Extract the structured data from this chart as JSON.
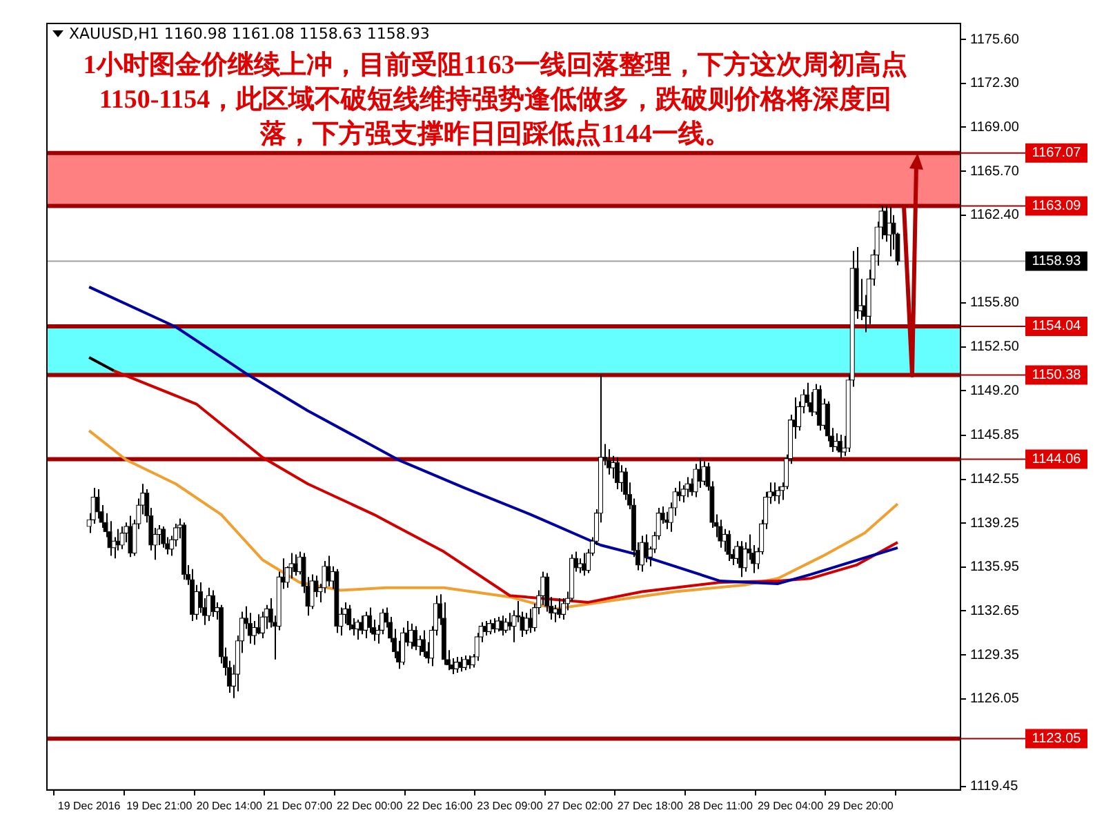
{
  "chart_data": {
    "type": "candlestick",
    "title": "1小时图金价继续上冲，目前受阻1163一线回落整理，下方这次周初高点1150-1154，此区域不破短线维持强势逢低做多，跌破则价格将深度回落，下方强支撑昨日回踩低点1144一线。",
    "annotations": [
      "XAUUSD,H1 1160.98 1161.08 1158.63 1158.93"
    ],
    "categories": [
      "19 Dec 2016",
      null,
      null,
      null,
      null,
      null,
      null,
      null,
      null,
      null,
      null,
      null,
      null,
      null,
      null,
      null,
      null,
      "19 Dec 21:00",
      null,
      null,
      null,
      null,
      null,
      null,
      null,
      null,
      null,
      null,
      null,
      null,
      null,
      null,
      null,
      null,
      "20 Dec 14:00",
      null,
      null,
      null,
      null,
      null,
      null,
      null,
      null,
      null,
      null,
      null,
      null,
      null,
      null,
      null,
      null,
      "21 Dec 07:00",
      null,
      null,
      null,
      null,
      null,
      null,
      null,
      null,
      null,
      null,
      null,
      null,
      null,
      null,
      null,
      null,
      "22 Dec 00:00",
      null,
      null,
      null,
      null,
      null,
      null,
      null,
      null,
      null,
      null,
      null,
      null,
      null,
      null,
      null,
      null,
      "22 Dec 16:00",
      null,
      null,
      null,
      null,
      null,
      null,
      null,
      null,
      null,
      null,
      null,
      null,
      null,
      null,
      null,
      null,
      "23 Dec 09:00",
      null,
      null,
      null,
      null,
      null,
      null,
      null,
      null,
      null,
      null,
      null,
      null,
      null,
      null,
      null,
      null,
      "27 Dec 02:00",
      null,
      null,
      null,
      null,
      null,
      null,
      null,
      null,
      null,
      null,
      null,
      null,
      null,
      null,
      null,
      null,
      "27 Dec 18:00",
      null,
      null,
      null,
      null,
      null,
      null,
      null,
      null,
      null,
      null,
      null,
      null,
      null,
      null,
      null,
      null,
      "28 Dec 11:00",
      null,
      null,
      null,
      null,
      null,
      null,
      null,
      null,
      null,
      null,
      null,
      null,
      null,
      null,
      null,
      null,
      "29 Dec 04:00",
      null,
      null,
      null,
      null,
      null,
      null,
      null,
      null,
      null,
      null,
      null,
      null,
      null,
      null,
      null,
      null,
      "29 Dec 20:00",
      null,
      null,
      null,
      null,
      null,
      null,
      null,
      null,
      null
    ],
    "ohlc": [
      [
        1139.0,
        1140.0,
        1138.5,
        1139.5
      ],
      [
        1139.5,
        1141.9,
        1139.2,
        1141.2
      ],
      [
        1141.2,
        1141.8,
        1139.6,
        1140.1
      ],
      [
        1140.1,
        1140.6,
        1138.9,
        1139.3
      ],
      [
        1139.3,
        1140.0,
        1138.2,
        1138.6
      ],
      [
        1138.6,
        1139.4,
        1136.8,
        1137.4
      ],
      [
        1137.4,
        1138.2,
        1136.6,
        1137.9
      ],
      [
        1137.9,
        1138.8,
        1137.2,
        1137.6
      ],
      [
        1137.6,
        1139.0,
        1137.3,
        1138.5
      ],
      [
        1138.5,
        1139.3,
        1137.8,
        1139.0
      ],
      [
        1139.0,
        1139.8,
        1136.7,
        1137.0
      ],
      [
        1137.0,
        1139.5,
        1136.8,
        1139.2
      ],
      [
        1139.2,
        1141.1,
        1138.8,
        1140.6
      ],
      [
        1140.6,
        1142.2,
        1139.9,
        1141.5
      ],
      [
        1141.5,
        1141.8,
        1139.3,
        1139.8
      ],
      [
        1139.8,
        1140.4,
        1137.2,
        1137.6
      ],
      [
        1137.6,
        1138.9,
        1136.5,
        1138.4
      ],
      [
        1138.4,
        1139.1,
        1137.6,
        1138.8
      ],
      [
        1138.8,
        1139.0,
        1137.4,
        1137.7
      ],
      [
        1137.7,
        1138.2,
        1136.9,
        1137.3
      ],
      [
        1137.3,
        1138.3,
        1136.8,
        1138.0
      ],
      [
        1138.0,
        1139.2,
        1137.5,
        1138.9
      ],
      [
        1138.9,
        1139.6,
        1138.1,
        1139.1
      ],
      [
        1139.1,
        1139.3,
        1135.0,
        1135.4
      ],
      [
        1135.4,
        1136.1,
        1134.6,
        1135.0
      ],
      [
        1135.0,
        1135.8,
        1131.9,
        1132.4
      ],
      [
        1132.4,
        1134.6,
        1132.0,
        1134.1
      ],
      [
        1134.1,
        1134.8,
        1132.5,
        1132.9
      ],
      [
        1132.9,
        1133.6,
        1131.6,
        1132.3
      ],
      [
        1132.3,
        1134.4,
        1131.9,
        1133.8
      ],
      [
        1133.8,
        1134.2,
        1132.2,
        1132.6
      ],
      [
        1132.6,
        1133.3,
        1132.0,
        1132.9
      ],
      [
        1132.9,
        1133.1,
        1128.7,
        1129.2
      ],
      [
        1129.2,
        1129.9,
        1127.8,
        1128.4
      ],
      [
        1128.4,
        1128.9,
        1126.5,
        1127.0
      ],
      [
        1127.0,
        1128.6,
        1126.1,
        1127.9
      ],
      [
        1127.9,
        1130.8,
        1126.6,
        1130.4
      ],
      [
        1130.4,
        1132.6,
        1129.5,
        1132.1
      ],
      [
        1132.1,
        1133.0,
        1131.3,
        1131.7
      ],
      [
        1131.7,
        1132.5,
        1130.2,
        1130.8
      ],
      [
        1130.8,
        1131.9,
        1130.1,
        1131.4
      ],
      [
        1131.4,
        1132.4,
        1130.9,
        1131.0
      ],
      [
        1131.0,
        1132.6,
        1130.6,
        1132.2
      ],
      [
        1132.2,
        1133.1,
        1131.3,
        1132.8
      ],
      [
        1132.8,
        1133.6,
        1131.4,
        1131.8
      ],
      [
        1131.8,
        1132.3,
        1129.0,
        1131.5
      ],
      [
        1131.5,
        1135.6,
        1131.2,
        1135.2
      ],
      [
        1135.2,
        1136.6,
        1134.3,
        1134.8
      ],
      [
        1134.8,
        1136.0,
        1134.4,
        1135.9
      ],
      [
        1135.9,
        1137.0,
        1135.1,
        1136.2
      ],
      [
        1136.2,
        1136.9,
        1135.3,
        1135.6
      ],
      [
        1135.6,
        1137.1,
        1135.4,
        1136.7
      ],
      [
        1136.7,
        1137.0,
        1134.0,
        1134.5
      ],
      [
        1134.5,
        1135.2,
        1132.3,
        1133.0
      ],
      [
        1133.0,
        1135.4,
        1132.8,
        1134.9
      ],
      [
        1134.9,
        1135.3,
        1133.7,
        1134.1
      ],
      [
        1134.1,
        1134.7,
        1133.3,
        1134.4
      ],
      [
        1134.4,
        1136.4,
        1134.0,
        1136.0
      ],
      [
        1136.0,
        1136.8,
        1134.5,
        1134.9
      ],
      [
        1134.9,
        1136.0,
        1134.3,
        1135.6
      ],
      [
        1135.6,
        1135.8,
        1131.0,
        1131.5
      ],
      [
        1131.5,
        1132.9,
        1130.8,
        1132.4
      ],
      [
        1132.4,
        1133.3,
        1131.7,
        1132.8
      ],
      [
        1132.8,
        1133.1,
        1131.2,
        1131.6
      ],
      [
        1131.6,
        1132.1,
        1130.8,
        1131.3
      ],
      [
        1131.3,
        1132.0,
        1130.5,
        1131.8
      ],
      [
        1131.8,
        1132.3,
        1130.9,
        1131.2
      ],
      [
        1131.2,
        1132.6,
        1130.6,
        1132.3
      ],
      [
        1132.3,
        1132.9,
        1131.0,
        1131.4
      ],
      [
        1131.4,
        1132.0,
        1130.4,
        1130.9
      ],
      [
        1130.9,
        1131.6,
        1130.2,
        1131.2
      ],
      [
        1131.2,
        1132.8,
        1130.9,
        1132.5
      ],
      [
        1132.5,
        1132.9,
        1131.4,
        1131.8
      ],
      [
        1131.8,
        1132.2,
        1130.3,
        1130.6
      ],
      [
        1130.6,
        1131.3,
        1129.1,
        1129.6
      ],
      [
        1129.6,
        1130.4,
        1128.3,
        1128.8
      ],
      [
        1128.8,
        1131.4,
        1128.6,
        1131.0
      ],
      [
        1131.0,
        1131.9,
        1130.0,
        1130.3
      ],
      [
        1130.3,
        1131.7,
        1129.8,
        1131.2
      ],
      [
        1131.2,
        1131.5,
        1129.7,
        1130.0
      ],
      [
        1130.0,
        1130.8,
        1129.3,
        1130.5
      ],
      [
        1130.5,
        1131.2,
        1129.2,
        1129.6
      ],
      [
        1129.6,
        1130.3,
        1128.7,
        1129.1
      ],
      [
        1129.1,
        1131.5,
        1128.5,
        1131.2
      ],
      [
        1131.2,
        1133.8,
        1130.8,
        1133.2
      ],
      [
        1133.2,
        1133.9,
        1131.6,
        1132.1
      ],
      [
        1132.1,
        1133.3,
        1128.6,
        1129.0
      ],
      [
        1129.0,
        1129.7,
        1128.2,
        1128.6
      ],
      [
        1128.6,
        1129.1,
        1127.9,
        1128.3
      ],
      [
        1128.3,
        1129.2,
        1128.0,
        1128.8
      ],
      [
        1128.8,
        1129.2,
        1128.1,
        1128.4
      ],
      [
        1128.4,
        1129.3,
        1128.2,
        1129.0
      ],
      [
        1129.0,
        1129.3,
        1128.3,
        1128.6
      ],
      [
        1128.6,
        1129.4,
        1128.4,
        1129.2
      ],
      [
        1129.2,
        1131.0,
        1128.9,
        1130.7
      ],
      [
        1130.7,
        1131.8,
        1130.3,
        1131.5
      ],
      [
        1131.5,
        1131.9,
        1130.8,
        1131.1
      ],
      [
        1131.1,
        1132.0,
        1130.9,
        1131.7
      ],
      [
        1131.7,
        1132.1,
        1131.0,
        1131.3
      ],
      [
        1131.3,
        1132.2,
        1131.1,
        1131.9
      ],
      [
        1131.9,
        1132.3,
        1130.8,
        1131.2
      ],
      [
        1131.2,
        1132.1,
        1131.0,
        1131.8
      ],
      [
        1131.8,
        1132.5,
        1131.2,
        1131.5
      ],
      [
        1131.5,
        1132.7,
        1130.3,
        1132.3
      ],
      [
        1132.3,
        1133.4,
        1131.8,
        1132.2
      ],
      [
        1132.2,
        1132.6,
        1130.7,
        1131.2
      ],
      [
        1131.2,
        1132.5,
        1130.9,
        1132.1
      ],
      [
        1132.1,
        1132.8,
        1131.0,
        1131.4
      ],
      [
        1131.4,
        1133.2,
        1131.1,
        1132.9
      ],
      [
        1132.9,
        1134.2,
        1132.4,
        1133.8
      ],
      [
        1133.8,
        1135.6,
        1133.1,
        1135.2
      ],
      [
        1135.2,
        1135.5,
        1132.6,
        1133.0
      ],
      [
        1133.0,
        1133.7,
        1132.0,
        1132.5
      ],
      [
        1132.5,
        1133.1,
        1131.8,
        1132.8
      ],
      [
        1132.8,
        1133.6,
        1132.1,
        1132.4
      ],
      [
        1132.4,
        1133.6,
        1132.0,
        1133.2
      ],
      [
        1133.2,
        1134.1,
        1132.7,
        1133.6
      ],
      [
        1133.6,
        1136.9,
        1133.4,
        1136.6
      ],
      [
        1136.6,
        1137.1,
        1135.6,
        1135.9
      ],
      [
        1135.9,
        1136.6,
        1135.5,
        1136.2
      ],
      [
        1136.2,
        1137.0,
        1135.3,
        1135.7
      ],
      [
        1135.7,
        1137.3,
        1135.5,
        1137.0
      ],
      [
        1137.0,
        1138.2,
        1136.8,
        1137.9
      ],
      [
        1137.9,
        1140.3,
        1137.6,
        1140.0
      ],
      [
        1140.0,
        1150.4,
        1139.3,
        1144.2
      ],
      [
        1144.2,
        1145.2,
        1143.6,
        1144.0
      ],
      [
        1144.0,
        1144.8,
        1142.9,
        1143.4
      ],
      [
        1143.4,
        1144.3,
        1142.6,
        1143.8
      ],
      [
        1143.8,
        1144.2,
        1141.8,
        1142.3
      ],
      [
        1142.3,
        1143.6,
        1141.6,
        1143.1
      ],
      [
        1143.1,
        1143.4,
        1141.0,
        1141.4
      ],
      [
        1141.4,
        1142.3,
        1140.3,
        1140.6
      ],
      [
        1140.6,
        1141.1,
        1136.7,
        1137.2
      ],
      [
        1137.2,
        1137.8,
        1135.7,
        1136.1
      ],
      [
        1136.1,
        1138.3,
        1135.6,
        1137.8
      ],
      [
        1137.8,
        1138.4,
        1136.3,
        1136.7
      ],
      [
        1136.7,
        1137.5,
        1136.0,
        1137.3
      ],
      [
        1137.3,
        1138.6,
        1137.0,
        1138.3
      ],
      [
        1138.3,
        1140.4,
        1138.0,
        1140.0
      ],
      [
        1140.0,
        1140.5,
        1139.2,
        1139.5
      ],
      [
        1139.5,
        1140.1,
        1138.8,
        1139.3
      ],
      [
        1139.3,
        1140.8,
        1138.6,
        1140.4
      ],
      [
        1140.4,
        1141.9,
        1139.8,
        1141.6
      ],
      [
        1141.6,
        1142.4,
        1140.9,
        1141.3
      ],
      [
        1141.3,
        1142.1,
        1140.8,
        1141.8
      ],
      [
        1141.8,
        1142.7,
        1141.2,
        1142.2
      ],
      [
        1142.2,
        1142.6,
        1141.3,
        1141.6
      ],
      [
        1141.6,
        1143.7,
        1141.2,
        1143.3
      ],
      [
        1143.3,
        1144.1,
        1141.9,
        1142.4
      ],
      [
        1142.4,
        1143.9,
        1142.1,
        1143.5
      ],
      [
        1143.5,
        1143.8,
        1141.7,
        1142.0
      ],
      [
        1142.0,
        1142.4,
        1138.9,
        1139.3
      ],
      [
        1139.3,
        1139.9,
        1138.2,
        1139.0
      ],
      [
        1139.0,
        1139.5,
        1137.4,
        1137.9
      ],
      [
        1137.9,
        1138.8,
        1137.1,
        1138.4
      ],
      [
        1138.4,
        1138.7,
        1136.4,
        1136.9
      ],
      [
        1136.9,
        1137.3,
        1136.1,
        1136.6
      ],
      [
        1136.6,
        1137.9,
        1136.2,
        1137.5
      ],
      [
        1137.5,
        1137.9,
        1135.2,
        1135.9
      ],
      [
        1135.9,
        1137.8,
        1135.6,
        1137.3
      ],
      [
        1137.3,
        1138.4,
        1136.5,
        1137.0
      ],
      [
        1137.0,
        1137.6,
        1135.5,
        1136.2
      ],
      [
        1136.2,
        1137.4,
        1135.8,
        1137.1
      ],
      [
        1137.1,
        1139.5,
        1136.9,
        1139.2
      ],
      [
        1139.2,
        1141.6,
        1138.8,
        1141.2
      ],
      [
        1141.2,
        1142.3,
        1140.7,
        1141.6
      ],
      [
        1141.6,
        1142.3,
        1140.9,
        1141.3
      ],
      [
        1141.3,
        1142.0,
        1140.7,
        1141.7
      ],
      [
        1141.7,
        1142.3,
        1141.0,
        1142.0
      ],
      [
        1142.0,
        1144.4,
        1141.8,
        1144.1
      ],
      [
        1144.1,
        1147.4,
        1143.7,
        1147.0
      ],
      [
        1147.0,
        1148.7,
        1145.6,
        1146.5
      ],
      [
        1146.5,
        1148.4,
        1146.2,
        1148.0
      ],
      [
        1148.0,
        1149.3,
        1147.5,
        1148.9
      ],
      [
        1148.9,
        1149.8,
        1148.0,
        1148.3
      ],
      [
        1148.3,
        1149.1,
        1147.3,
        1147.6
      ],
      [
        1147.6,
        1149.7,
        1147.4,
        1149.3
      ],
      [
        1149.3,
        1149.6,
        1146.2,
        1146.6
      ],
      [
        1146.6,
        1148.6,
        1146.3,
        1148.2
      ],
      [
        1148.2,
        1148.4,
        1145.4,
        1145.8
      ],
      [
        1145.8,
        1146.4,
        1144.6,
        1145.0
      ],
      [
        1145.0,
        1146.0,
        1144.7,
        1145.4
      ],
      [
        1145.4,
        1145.9,
        1144.1,
        1144.6
      ],
      [
        1144.6,
        1145.8,
        1144.3,
        1144.9
      ],
      [
        1144.9,
        1150.4,
        1144.6,
        1150.0
      ],
      [
        1150.0,
        1159.7,
        1149.5,
        1158.4
      ],
      [
        1158.4,
        1160.0,
        1154.6,
        1155.2
      ],
      [
        1155.2,
        1157.6,
        1154.5,
        1155.6
      ],
      [
        1155.6,
        1156.4,
        1153.6,
        1154.8
      ],
      [
        1154.8,
        1158.3,
        1154.2,
        1157.6
      ],
      [
        1157.6,
        1159.8,
        1157.1,
        1159.4
      ],
      [
        1159.4,
        1161.9,
        1158.6,
        1161.5
      ],
      [
        1161.5,
        1163.1,
        1160.6,
        1162.7
      ],
      [
        1162.7,
        1163.1,
        1160.4,
        1160.9
      ],
      [
        1160.9,
        1163.0,
        1159.3,
        1161.8
      ],
      [
        1161.8,
        1162.4,
        1159.8,
        1160.98
      ],
      [
        1160.98,
        1161.08,
        1158.63,
        1158.93
      ]
    ],
    "series": [
      {
        "type": "line",
        "color": "#0000a0",
        "values": [
          1157.0,
          null,
          null,
          null,
          null,
          null,
          null,
          null,
          null,
          null,
          null,
          null,
          null,
          null,
          null,
          null,
          null,
          null,
          null,
          null,
          null,
          1154.0,
          null,
          null,
          null,
          null,
          null,
          null,
          null,
          null,
          null,
          null,
          null,
          null,
          null,
          null,
          null,
          null,
          1150.5,
          null,
          null,
          null,
          null,
          null,
          null,
          null,
          null,
          null,
          null,
          null,
          null,
          null,
          null,
          1147.7,
          null,
          null,
          null,
          null,
          null,
          null,
          null,
          null,
          null,
          null,
          null,
          null,
          null,
          null,
          null,
          null,
          null,
          null,
          null,
          null,
          null,
          1144.0,
          null,
          null,
          null,
          null,
          null,
          null,
          null,
          null,
          null,
          null,
          null,
          null,
          null,
          null,
          null,
          1141.9,
          null,
          null,
          null,
          null,
          null,
          null,
          null,
          null,
          null,
          null,
          null,
          null,
          null,
          null,
          null,
          1139.9,
          null,
          null,
          null,
          null,
          null,
          null,
          null,
          null,
          null,
          null,
          null,
          null,
          null,
          null,
          null,
          null,
          1137.6,
          null,
          null,
          null,
          null,
          null,
          null,
          null,
          null,
          null,
          1136.8,
          null,
          null,
          null,
          null,
          null,
          null,
          null,
          null,
          null,
          null,
          null,
          null,
          null,
          null,
          null,
          null,
          null,
          null,
          1134.9,
          null,
          null,
          null,
          null,
          null,
          null,
          null,
          null,
          null,
          null,
          null,
          null,
          null,
          1134.7,
          null,
          null,
          null,
          null,
          null,
          null,
          null,
          1135.4,
          null,
          null,
          null,
          null,
          null,
          null,
          null,
          null,
          null,
          null,
          null,
          null,
          null,
          null,
          null,
          null,
          null,
          null,
          null,
          null,
          1137.4
        ]
      },
      {
        "type": "line",
        "color": "#d00000",
        "values": [
          null,
          null,
          null,
          null,
          null,
          null,
          1150.7,
          null,
          null,
          null,
          null,
          null,
          null,
          null,
          null,
          null,
          null,
          null,
          null,
          null,
          null,
          null,
          null,
          null,
          null,
          null,
          1148.2,
          null,
          null,
          null,
          null,
          null,
          null,
          null,
          null,
          null,
          null,
          null,
          null,
          null,
          null,
          null,
          1144.2,
          null,
          null,
          null,
          null,
          null,
          null,
          null,
          null,
          null,
          null,
          1142.2,
          null,
          null,
          null,
          null,
          null,
          null,
          null,
          null,
          null,
          null,
          null,
          null,
          null,
          null,
          null,
          1139.9,
          null,
          null,
          null,
          null,
          null,
          null,
          null,
          null,
          null,
          null,
          null,
          null,
          null,
          null,
          null,
          null,
          1137.1,
          null,
          null,
          null,
          null,
          null,
          null,
          null,
          null,
          null,
          null,
          null,
          null,
          null,
          null,
          null,
          1133.8,
          null,
          null,
          null,
          null,
          null,
          null,
          null,
          null,
          null,
          null,
          null,
          null,
          null,
          null,
          null,
          null,
          null,
          null,
          1133.3,
          null,
          null,
          null,
          null,
          null,
          null,
          null,
          null,
          null,
          null,
          null,
          null,
          1134.1,
          null,
          null,
          null,
          null,
          null,
          null,
          null,
          null,
          null,
          null,
          null,
          null,
          null,
          null,
          null,
          null,
          null,
          null,
          1134.8,
          null,
          null,
          null,
          null,
          null,
          null,
          null,
          null,
          null,
          null,
          null,
          null,
          null,
          1134.9,
          null,
          null,
          null,
          null,
          null,
          null,
          null,
          1135.1,
          null,
          null,
          null,
          null,
          null,
          null,
          null,
          null,
          null,
          null,
          1136.1,
          null,
          null,
          null,
          null,
          null,
          null,
          null,
          null,
          null,
          1137.8
        ]
      },
      {
        "type": "line",
        "color": "#000000",
        "values": [
          1151.7,
          null,
          null,
          null,
          null,
          null,
          1150.7,
          null,
          null,
          null,
          null,
          null,
          null,
          null,
          null,
          null,
          null,
          null,
          null,
          null,
          null,
          null,
          null,
          null,
          null,
          null,
          null,
          null,
          null,
          null,
          null,
          null,
          null,
          null,
          null,
          null,
          null,
          null,
          null,
          null,
          null,
          null,
          null,
          null,
          null,
          null,
          null,
          null,
          null,
          null,
          null,
          null,
          null,
          null,
          null,
          null,
          null,
          null,
          null,
          null,
          null,
          null,
          null,
          null,
          null,
          null,
          null,
          null,
          null,
          null,
          null,
          null,
          null,
          null,
          null,
          null,
          null,
          null,
          null,
          null,
          null,
          null,
          null,
          null,
          null,
          null,
          null,
          null,
          null,
          null,
          null,
          null,
          null,
          null,
          null,
          null,
          null,
          null,
          null,
          null,
          null,
          null,
          null,
          null,
          null,
          null,
          null,
          null,
          null,
          null,
          null,
          null,
          null,
          null,
          null,
          null,
          null,
          null,
          null,
          null,
          null,
          null,
          null,
          null,
          null,
          null,
          null,
          null,
          null,
          null,
          null,
          null,
          null,
          null,
          null,
          null,
          null,
          null,
          null,
          null,
          null,
          null,
          null,
          null,
          null,
          null,
          null,
          null,
          null,
          null,
          null,
          null,
          null,
          null,
          null,
          null,
          null,
          null,
          null,
          null,
          null,
          null,
          null,
          null,
          null,
          null,
          null,
          null,
          null,
          null,
          null,
          null,
          null,
          null,
          null,
          null,
          null,
          null,
          null,
          null,
          null,
          null,
          null,
          null,
          null,
          null,
          null,
          null,
          null,
          null,
          null,
          null,
          null,
          null,
          null,
          null,
          null
        ]
      },
      {
        "type": "line",
        "color": "#f0a030",
        "values": [
          1146.2,
          null,
          null,
          null,
          null,
          null,
          null,
          null,
          null,
          1144.0,
          null,
          null,
          null,
          null,
          null,
          null,
          null,
          null,
          null,
          null,
          null,
          1142.2,
          null,
          null,
          null,
          null,
          null,
          null,
          null,
          null,
          null,
          null,
          1139.9,
          null,
          null,
          null,
          null,
          null,
          null,
          null,
          null,
          null,
          1136.5,
          null,
          null,
          null,
          null,
          null,
          null,
          null,
          null,
          1134.8,
          null,
          null,
          null,
          null,
          null,
          null,
          null,
          null,
          null,
          1134.2,
          null,
          null,
          null,
          null,
          null,
          null,
          null,
          null,
          null,
          null,
          1134.4,
          null,
          null,
          null,
          null,
          null,
          null,
          null,
          null,
          null,
          null,
          null,
          null,
          null,
          1134.4,
          null,
          null,
          null,
          null,
          null,
          null,
          null,
          null,
          null,
          null,
          null,
          null,
          null,
          null,
          null,
          1133.7,
          null,
          null,
          null,
          null,
          null,
          null,
          null,
          null,
          null,
          null,
          1132.8,
          null,
          null,
          null,
          null,
          null,
          null,
          null,
          null,
          null,
          null,
          null,
          null,
          1133.4,
          null,
          null,
          null,
          null,
          null,
          null,
          null,
          null,
          null,
          null,
          null,
          null,
          null,
          null,
          null,
          1134.1,
          null,
          null,
          null,
          null,
          null,
          null,
          null,
          null,
          null,
          null,
          null,
          null,
          null,
          null,
          null,
          null,
          1134.6,
          null,
          null,
          null,
          null,
          null,
          null,
          null,
          1135.1,
          null,
          null,
          null,
          null,
          null,
          null,
          null,
          null,
          null,
          null,
          1136.8,
          null,
          null,
          null,
          null,
          null,
          null,
          null,
          null,
          null,
          1138.5,
          null,
          null,
          null,
          null,
          null,
          null,
          null,
          1140.7
        ]
      }
    ],
    "bands": [
      {
        "axis": "y",
        "from": 1163.09,
        "to": 1167.07,
        "color": "#ff8080"
      },
      {
        "axis": "y",
        "from": 1150.38,
        "to": 1154.04,
        "color": "#66ffff"
      }
    ],
    "ref_lines": [
      {
        "axis": "y",
        "value": 1167.07,
        "label": "1167.07",
        "color": "#a00000"
      },
      {
        "axis": "y",
        "value": 1163.09,
        "label": "1163.09",
        "color": "#a00000"
      },
      {
        "axis": "y",
        "value": 1158.93,
        "label": "1158.93",
        "color": "#a0a0a0"
      },
      {
        "axis": "y",
        "value": 1154.04,
        "label": "1154.04",
        "color": "#a00000"
      },
      {
        "axis": "y",
        "value": 1150.38,
        "label": "1150.38",
        "color": "#a00000"
      },
      {
        "axis": "y",
        "value": 1144.06,
        "label": "1144.06",
        "color": "#a00000"
      },
      {
        "axis": "y",
        "value": 1123.05,
        "label": "1123.05",
        "color": "#a00000"
      }
    ],
    "ylim": [
      1119.2,
      1176.8
    ],
    "yticks": [
      {
        "value": 1119.45,
        "label": "1119.45"
      },
      {
        "value": 1126.05,
        "label": "1126.05"
      },
      {
        "value": 1129.35,
        "label": "1129.35"
      },
      {
        "value": 1132.65,
        "label": "1132.65"
      },
      {
        "value": 1135.95,
        "label": "1135.95"
      },
      {
        "value": 1139.25,
        "label": "1139.25"
      },
      {
        "value": 1142.55,
        "label": "1142.55"
      },
      {
        "value": 1145.85,
        "label": "1145.85"
      },
      {
        "value": 1149.2,
        "label": "1149.20"
      },
      {
        "value": 1152.5,
        "label": "1152.50"
      },
      {
        "value": 1155.8,
        "label": "1155.80"
      },
      {
        "value": 1162.4,
        "label": "1162.40"
      },
      {
        "value": 1165.7,
        "label": "1165.70"
      },
      {
        "value": 1169,
        "label": "1169.00"
      },
      {
        "value": 1172.3,
        "label": "1172.30"
      },
      {
        "value": 1175.6,
        "label": "1175.60"
      }
    ],
    "legend": false
  }
}
